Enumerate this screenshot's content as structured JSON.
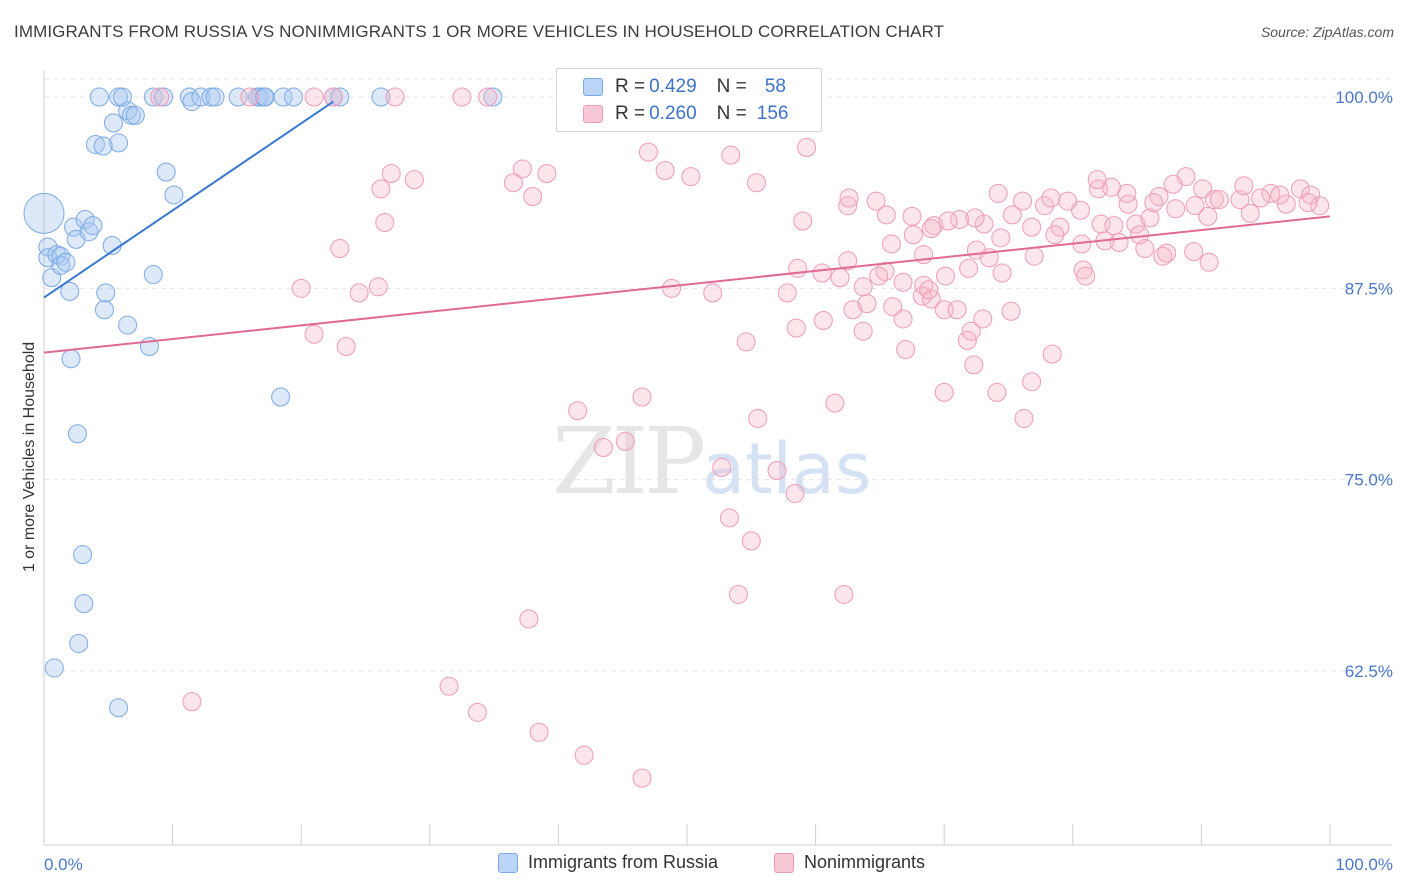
{
  "title": "IMMIGRANTS FROM RUSSIA VS NONIMMIGRANTS 1 OR MORE VEHICLES IN HOUSEHOLD CORRELATION CHART",
  "source": "Source: ZipAtlas.com",
  "watermark": {
    "zip": "ZIP",
    "atlas": "atlas"
  },
  "legend": {
    "series1": {
      "r_label": "R =",
      "r_value": "0.429",
      "n_label": "N =",
      "n_value": "58",
      "color": "#a9c8f0"
    },
    "series2": {
      "r_label": "R =",
      "r_value": "0.260",
      "n_label": "N =",
      "n_value": "156",
      "color": "#f6b6c8"
    }
  },
  "bottom_legend": {
    "series1": "Immigrants from Russia",
    "series2": "Nonimmigrants"
  },
  "chart_data": {
    "type": "scatter",
    "title": "IMMIGRANTS FROM RUSSIA VS NONIMMIGRANTS 1 OR MORE VEHICLES IN HOUSEHOLD CORRELATION CHART",
    "ylabel": "1 or more Vehicles in Household",
    "xlabel": "",
    "xlim": [
      0,
      100
    ],
    "ylim": [
      50,
      101.5
    ],
    "y_ticks": [
      62.5,
      75.0,
      87.5,
      100.0
    ],
    "y_tick_labels": [
      "62.5%",
      "75.0%",
      "87.5%",
      "100.0%"
    ],
    "x_tick_labels": [
      "0.0%",
      "100.0%"
    ],
    "x_minor_ticks": [
      10,
      20,
      30,
      40,
      50,
      60,
      70,
      80,
      90,
      100
    ],
    "grid": true,
    "series": [
      {
        "name": "Immigrants from Russia",
        "color": "#7aaae8",
        "trend": {
          "x": [
            0,
            22.5
          ],
          "y": [
            86.9,
            99.7
          ],
          "color": "#3a78d0"
        },
        "points": [
          [
            0,
            92.4
          ],
          [
            0.3,
            90.2
          ],
          [
            0.3,
            89.5
          ],
          [
            0.6,
            88.2
          ],
          [
            1.0,
            89.7
          ],
          [
            1.3,
            89.6
          ],
          [
            1.3,
            89.0
          ],
          [
            1.7,
            89.2
          ],
          [
            2.0,
            87.3
          ],
          [
            2.3,
            91.5
          ],
          [
            2.5,
            90.7
          ],
          [
            3.2,
            92.0
          ],
          [
            3.5,
            91.2
          ],
          [
            3.8,
            91.6
          ],
          [
            5.4,
            98.3
          ],
          [
            4.0,
            96.9
          ],
          [
            5.8,
            97.0
          ],
          [
            6.5,
            99.1
          ],
          [
            6.8,
            98.8
          ],
          [
            7.1,
            98.8
          ],
          [
            4.3,
            100
          ],
          [
            4.6,
            96.8
          ],
          [
            5.8,
            100
          ],
          [
            6.1,
            100
          ],
          [
            8.5,
            100
          ],
          [
            9.3,
            100
          ],
          [
            11.3,
            100
          ],
          [
            11.5,
            99.7
          ],
          [
            12.2,
            100
          ],
          [
            13.0,
            100
          ],
          [
            13.3,
            100
          ],
          [
            15.1,
            100
          ],
          [
            16.6,
            100
          ],
          [
            16.8,
            100
          ],
          [
            17.1,
            100
          ],
          [
            17.2,
            100
          ],
          [
            18.6,
            100
          ],
          [
            19.4,
            100
          ],
          [
            22.5,
            100
          ],
          [
            23.0,
            100
          ],
          [
            26.2,
            100
          ],
          [
            34.9,
            100
          ],
          [
            9.5,
            95.1
          ],
          [
            10.1,
            93.6
          ],
          [
            5.3,
            90.3
          ],
          [
            8.5,
            88.4
          ],
          [
            4.8,
            87.2
          ],
          [
            4.7,
            86.1
          ],
          [
            6.5,
            85.1
          ],
          [
            8.2,
            83.7
          ],
          [
            2.1,
            82.9
          ],
          [
            18.4,
            80.4
          ],
          [
            2.6,
            78.0
          ],
          [
            3.0,
            70.1
          ],
          [
            3.1,
            66.9
          ],
          [
            2.7,
            64.3
          ],
          [
            0.8,
            62.7
          ],
          [
            5.8,
            60.1
          ]
        ]
      },
      {
        "name": "Nonimmigrants",
        "color": "#f29ab6",
        "trend": {
          "x": [
            0,
            100
          ],
          "y": [
            83.3,
            92.2
          ],
          "color": "#e06a94"
        },
        "points": [
          [
            9.0,
            100
          ],
          [
            21.0,
            100
          ],
          [
            22.5,
            100
          ],
          [
            16.0,
            100
          ],
          [
            27.3,
            100
          ],
          [
            32.5,
            100
          ],
          [
            34.5,
            100
          ],
          [
            47.0,
            96.4
          ],
          [
            37.2,
            95.3
          ],
          [
            28.8,
            94.6
          ],
          [
            36.5,
            94.4
          ],
          [
            38.0,
            93.5
          ],
          [
            39.1,
            95.0
          ],
          [
            48.3,
            95.2
          ],
          [
            50.3,
            94.8
          ],
          [
            53.4,
            96.2
          ],
          [
            59.3,
            96.7
          ],
          [
            55.4,
            94.4
          ],
          [
            59.0,
            91.9
          ],
          [
            62.5,
            92.9
          ],
          [
            65.5,
            92.3
          ],
          [
            58.6,
            88.8
          ],
          [
            60.5,
            88.5
          ],
          [
            62.5,
            89.3
          ],
          [
            65.4,
            88.6
          ],
          [
            68.4,
            89.7
          ],
          [
            72.5,
            90.0
          ],
          [
            74.5,
            88.5
          ],
          [
            77.0,
            89.6
          ],
          [
            79.0,
            91.5
          ],
          [
            82.2,
            91.7
          ],
          [
            83.6,
            90.5
          ],
          [
            85.6,
            90.1
          ],
          [
            87.3,
            89.8
          ],
          [
            89.4,
            89.9
          ],
          [
            90.6,
            89.2
          ],
          [
            48.8,
            87.5
          ],
          [
            57.8,
            87.2
          ],
          [
            62.9,
            86.1
          ],
          [
            64.0,
            86.5
          ],
          [
            66.8,
            85.5
          ],
          [
            68.3,
            87.0
          ],
          [
            73.0,
            85.5
          ],
          [
            75.2,
            86.0
          ],
          [
            71.8,
            84.1
          ],
          [
            78.4,
            83.2
          ],
          [
            63.7,
            84.7
          ],
          [
            52.0,
            87.2
          ],
          [
            54.6,
            84.0
          ],
          [
            58.5,
            84.9
          ],
          [
            60.6,
            85.4
          ],
          [
            67.0,
            83.5
          ],
          [
            72.3,
            82.5
          ],
          [
            76.8,
            81.4
          ],
          [
            70.0,
            80.7
          ],
          [
            74.1,
            80.7
          ],
          [
            76.2,
            79.0
          ],
          [
            61.5,
            80.0
          ],
          [
            55.5,
            79.0
          ],
          [
            46.5,
            80.4
          ],
          [
            41.5,
            79.5
          ],
          [
            43.5,
            77.1
          ],
          [
            45.2,
            77.5
          ],
          [
            57.0,
            75.6
          ],
          [
            58.4,
            74.1
          ],
          [
            52.7,
            75.8
          ],
          [
            53.3,
            72.5
          ],
          [
            55.0,
            71.0
          ],
          [
            54.0,
            67.5
          ],
          [
            62.2,
            67.5
          ],
          [
            37.7,
            65.9
          ],
          [
            31.5,
            61.5
          ],
          [
            11.5,
            60.5
          ],
          [
            33.7,
            59.8
          ],
          [
            38.5,
            58.5
          ],
          [
            42.0,
            57.0
          ],
          [
            46.5,
            55.5
          ],
          [
            64.9,
            88.3
          ],
          [
            66.8,
            87.9
          ],
          [
            68.4,
            87.7
          ],
          [
            69.0,
            86.8
          ],
          [
            70.0,
            86.1
          ],
          [
            71.0,
            86.1
          ],
          [
            72.1,
            84.7
          ],
          [
            80.8,
            88.7
          ],
          [
            81.0,
            88.3
          ],
          [
            82.5,
            90.6
          ],
          [
            84.9,
            91.7
          ],
          [
            86.0,
            92.1
          ],
          [
            88.0,
            92.7
          ],
          [
            90.5,
            92.2
          ],
          [
            93.0,
            93.3
          ],
          [
            93.8,
            92.4
          ],
          [
            95.4,
            93.7
          ],
          [
            96.6,
            93.0
          ],
          [
            97.7,
            94.0
          ],
          [
            98.5,
            93.6
          ],
          [
            99.2,
            92.9
          ],
          [
            91.0,
            93.3
          ],
          [
            89.5,
            92.9
          ],
          [
            86.7,
            93.5
          ],
          [
            84.3,
            93.0
          ],
          [
            82.0,
            94.0
          ],
          [
            80.6,
            92.6
          ],
          [
            77.8,
            92.9
          ],
          [
            75.3,
            92.3
          ],
          [
            73.1,
            91.7
          ],
          [
            71.2,
            92.0
          ],
          [
            69.2,
            91.6
          ],
          [
            67.5,
            92.2
          ],
          [
            64.7,
            93.2
          ],
          [
            62.6,
            93.4
          ],
          [
            88.8,
            94.8
          ],
          [
            90.1,
            94.0
          ],
          [
            91.4,
            93.3
          ],
          [
            93.3,
            94.2
          ],
          [
            94.6,
            93.4
          ],
          [
            96.1,
            93.6
          ],
          [
            98.3,
            93.1
          ],
          [
            87.8,
            94.3
          ],
          [
            86.3,
            93.1
          ],
          [
            84.2,
            93.7
          ],
          [
            83.0,
            94.1
          ],
          [
            81.9,
            94.6
          ],
          [
            79.6,
            93.2
          ],
          [
            78.3,
            93.4
          ],
          [
            76.1,
            93.2
          ],
          [
            74.2,
            93.7
          ],
          [
            72.4,
            92.1
          ],
          [
            70.3,
            91.9
          ],
          [
            69.0,
            91.4
          ],
          [
            67.6,
            91.0
          ],
          [
            65.9,
            90.4
          ],
          [
            87.0,
            89.6
          ],
          [
            85.2,
            91.0
          ],
          [
            83.2,
            91.6
          ],
          [
            80.7,
            90.4
          ],
          [
            78.6,
            91.0
          ],
          [
            76.8,
            91.5
          ],
          [
            74.4,
            90.8
          ],
          [
            73.5,
            89.5
          ],
          [
            71.9,
            88.8
          ],
          [
            70.1,
            88.3
          ],
          [
            68.8,
            87.4
          ],
          [
            66.0,
            86.3
          ],
          [
            63.7,
            87.6
          ],
          [
            61.9,
            88.2
          ],
          [
            27.0,
            95.0
          ],
          [
            26.2,
            94.0
          ],
          [
            23.0,
            90.1
          ],
          [
            20.0,
            87.5
          ],
          [
            24.5,
            87.2
          ],
          [
            26.0,
            87.6
          ],
          [
            21.0,
            84.5
          ],
          [
            23.5,
            83.7
          ],
          [
            26.5,
            91.8
          ]
        ]
      }
    ]
  }
}
